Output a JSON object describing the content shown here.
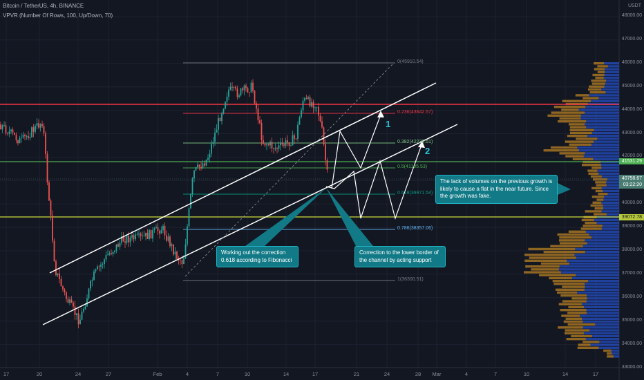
{
  "header": {
    "symbol": "Bitcoin / TetherUS, 4h, BINANCE",
    "indicator": "VPVR (Number Of Rows, 100, Up/Down, 70)"
  },
  "currency": "USDT",
  "y_axis": {
    "ticks": [
      "48000.00",
      "47000.00",
      "46000.00",
      "45000.00",
      "44000.00",
      "43000.00",
      "42000.00",
      "41000.00",
      "40000.00",
      "39000.00",
      "38000.00",
      "37000.00",
      "36000.00",
      "35000.00",
      "34000.00",
      "33000.00"
    ]
  },
  "x_axis": {
    "ticks": [
      "17",
      "20",
      "24",
      "27",
      "Feb",
      "4",
      "7",
      "10",
      "14",
      "17",
      "21",
      "24",
      "28",
      "Mar",
      "4",
      "7",
      "10",
      "14",
      "17"
    ]
  },
  "price_tags": {
    "green": "41531.29",
    "current_price": "40758.67",
    "countdown": "03:22:20",
    "yellow": "39072.78"
  },
  "fib_levels": [
    {
      "label": "0(45910.54)",
      "color": "#787b86"
    },
    {
      "label": "0.236(43642.57)",
      "color": "#f23645"
    },
    {
      "label": "0.382(42239.51)",
      "color": "#81c784"
    },
    {
      "label": "0.5(41105.53)",
      "color": "#4caf50"
    },
    {
      "label": "0.618(39971.54)",
      "color": "#089981"
    },
    {
      "label": "0.786(38357.06)",
      "color": "#64b5f6"
    },
    {
      "label": "1(36300.51)",
      "color": "#787b86"
    }
  ],
  "annotations": {
    "fib_note": "Working out the correction 0.618 according to Fibonacci",
    "support_note": "Correction to the lower border of the channel by acting support",
    "volume_note": "The lack of volumes on the previous growth is likely to cause a flat in the near future. Since the growth was fake."
  },
  "scenario_labels": {
    "one": "1",
    "two": "2"
  },
  "colors": {
    "background": "#131722",
    "up": "#26a69a",
    "down": "#ef5350",
    "resistance": "#f23645",
    "support_green": "#4caf50",
    "support_yellow": "#cddc39",
    "annotation_bg": "#127a87",
    "volume_up": "#2962ff",
    "volume_down": "#f5a623"
  }
}
